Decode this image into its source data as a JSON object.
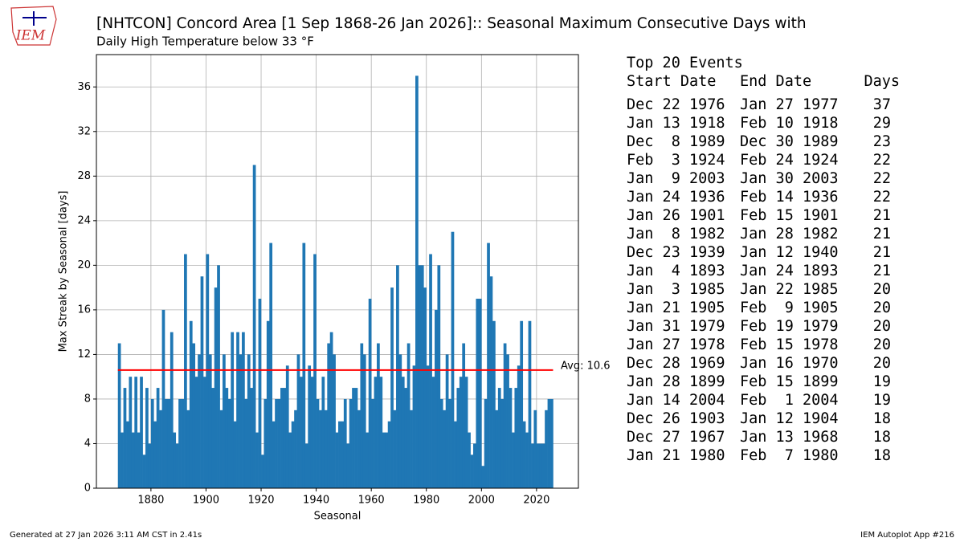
{
  "logo_text": "IEM",
  "chart_data": {
    "type": "bar",
    "title": "[NHTCON] Concord Area [1 Sep 1868-26 Jan 2026]:: Seasonal Maximum Consecutive Days with",
    "subtitle": "Daily High Temperature below 33 °F",
    "x_label": "Seasonal",
    "y_label": "Max Streak by Seasonal [days]",
    "color": "#1f77b4",
    "grid": true,
    "x": [
      1868,
      1869,
      1870,
      1871,
      1872,
      1873,
      1874,
      1875,
      1876,
      1877,
      1878,
      1879,
      1880,
      1881,
      1882,
      1883,
      1884,
      1885,
      1886,
      1887,
      1888,
      1889,
      1890,
      1891,
      1892,
      1893,
      1894,
      1895,
      1896,
      1897,
      1898,
      1899,
      1900,
      1901,
      1902,
      1903,
      1904,
      1905,
      1906,
      1907,
      1908,
      1909,
      1910,
      1911,
      1912,
      1913,
      1914,
      1915,
      1916,
      1917,
      1918,
      1919,
      1920,
      1921,
      1922,
      1923,
      1924,
      1925,
      1926,
      1927,
      1928,
      1929,
      1930,
      1931,
      1932,
      1933,
      1934,
      1935,
      1936,
      1937,
      1938,
      1939,
      1940,
      1941,
      1942,
      1943,
      1944,
      1945,
      1946,
      1947,
      1948,
      1949,
      1950,
      1951,
      1952,
      1953,
      1954,
      1955,
      1956,
      1957,
      1958,
      1959,
      1960,
      1961,
      1962,
      1963,
      1964,
      1965,
      1966,
      1967,
      1968,
      1969,
      1970,
      1971,
      1972,
      1973,
      1974,
      1975,
      1976,
      1977,
      1978,
      1979,
      1980,
      1981,
      1982,
      1983,
      1984,
      1985,
      1986,
      1987,
      1988,
      1989,
      1990,
      1991,
      1992,
      1993,
      1994,
      1995,
      1996,
      1997,
      1998,
      1999,
      2000,
      2001,
      2002,
      2003,
      2004,
      2005,
      2006,
      2007,
      2008,
      2009,
      2010,
      2011,
      2012,
      2013,
      2014,
      2015,
      2016,
      2017,
      2018,
      2019,
      2020,
      2021,
      2022,
      2023,
      2024,
      2025
    ],
    "values": [
      13,
      5,
      9,
      6,
      10,
      5,
      10,
      5,
      10,
      3,
      9,
      4,
      8,
      6,
      9,
      7,
      16,
      8,
      8,
      14,
      5,
      4,
      8,
      8,
      21,
      7,
      15,
      13,
      10,
      12,
      19,
      10,
      21,
      12,
      9,
      18,
      20,
      7,
      12,
      9,
      8,
      14,
      6,
      14,
      12,
      14,
      8,
      12,
      9,
      29,
      5,
      17,
      3,
      8,
      15,
      22,
      6,
      8,
      8,
      9,
      9,
      11,
      5,
      6,
      7,
      12,
      10,
      22,
      4,
      11,
      10,
      21,
      8,
      7,
      10,
      7,
      13,
      14,
      12,
      5,
      6,
      6,
      8,
      4,
      8,
      9,
      9,
      7,
      13,
      12,
      5,
      17,
      8,
      10,
      13,
      10,
      5,
      5,
      6,
      18,
      7,
      20,
      12,
      10,
      9,
      13,
      7,
      11,
      37,
      20,
      20,
      18,
      11,
      21,
      10,
      16,
      20,
      8,
      7,
      12,
      8,
      23,
      6,
      9,
      10,
      13,
      10,
      5,
      3,
      4,
      17,
      17,
      2,
      8,
      22,
      19,
      15,
      7,
      9,
      8,
      13,
      12,
      9,
      5,
      9,
      11,
      15,
      6,
      5,
      15,
      4,
      7,
      4,
      4,
      4,
      7,
      8,
      8
    ],
    "xlim": [
      1860.2,
      2035.2
    ],
    "ylim": [
      0,
      38.9
    ],
    "xticks": [
      1880,
      1900,
      1920,
      1940,
      1960,
      1980,
      2000,
      2020
    ],
    "yticks": [
      0,
      4,
      8,
      12,
      16,
      20,
      24,
      28,
      32,
      36
    ],
    "avg_line": {
      "value": 10.6,
      "label": "Avg: 10.6",
      "color": "#ff0000"
    }
  },
  "table": {
    "title": "Top 20 Events",
    "columns": [
      "Start Date",
      "End Date",
      "Days"
    ],
    "rows": [
      [
        "Dec 22 1976",
        "Jan 27 1977",
        37
      ],
      [
        "Jan 13 1918",
        "Feb 10 1918",
        29
      ],
      [
        "Dec  8 1989",
        "Dec 30 1989",
        23
      ],
      [
        "Feb  3 1924",
        "Feb 24 1924",
        22
      ],
      [
        "Jan  9 2003",
        "Jan 30 2003",
        22
      ],
      [
        "Jan 24 1936",
        "Feb 14 1936",
        22
      ],
      [
        "Jan 26 1901",
        "Feb 15 1901",
        21
      ],
      [
        "Jan  8 1982",
        "Jan 28 1982",
        21
      ],
      [
        "Dec 23 1939",
        "Jan 12 1940",
        21
      ],
      [
        "Jan  4 1893",
        "Jan 24 1893",
        21
      ],
      [
        "Jan  3 1985",
        "Jan 22 1985",
        20
      ],
      [
        "Jan 21 1905",
        "Feb  9 1905",
        20
      ],
      [
        "Jan 31 1979",
        "Feb 19 1979",
        20
      ],
      [
        "Jan 27 1978",
        "Feb 15 1978",
        20
      ],
      [
        "Dec 28 1969",
        "Jan 16 1970",
        20
      ],
      [
        "Jan 28 1899",
        "Feb 15 1899",
        19
      ],
      [
        "Jan 14 2004",
        "Feb  1 2004",
        19
      ],
      [
        "Dec 26 1903",
        "Jan 12 1904",
        18
      ],
      [
        "Dec 27 1967",
        "Jan 13 1968",
        18
      ],
      [
        "Jan 21 1980",
        "Feb  7 1980",
        18
      ]
    ]
  },
  "footer": {
    "left": "Generated at 27 Jan 2026 3:11 AM CST in 2.41s",
    "right": "IEM Autoplot App #216"
  }
}
